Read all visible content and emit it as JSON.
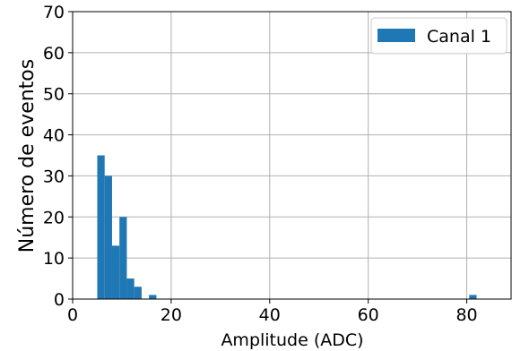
{
  "chart_data": {
    "type": "bar",
    "histogram": true,
    "title": "",
    "xlabel": "Amplitude (ADC)",
    "ylabel": "Número de eventos",
    "xlim": [
      0,
      89
    ],
    "ylim": [
      0,
      70
    ],
    "xticks": [
      0,
      20,
      40,
      60,
      80
    ],
    "yticks": [
      0,
      10,
      20,
      30,
      40,
      50,
      60,
      70
    ],
    "grid": true,
    "legend_position": "top-right",
    "series": [
      {
        "name": "Canal 1",
        "color": "#1f77b4",
        "bin_edges": [
          5,
          6.5,
          8,
          9.5,
          11,
          12.5,
          14,
          15.5,
          17
        ],
        "counts": [
          35,
          30,
          13,
          20,
          5,
          3,
          0,
          1
        ]
      },
      {
        "name": "",
        "color": "#1f77b4",
        "bin_edges": [
          80.5,
          82
        ],
        "counts": [
          1
        ]
      }
    ]
  }
}
